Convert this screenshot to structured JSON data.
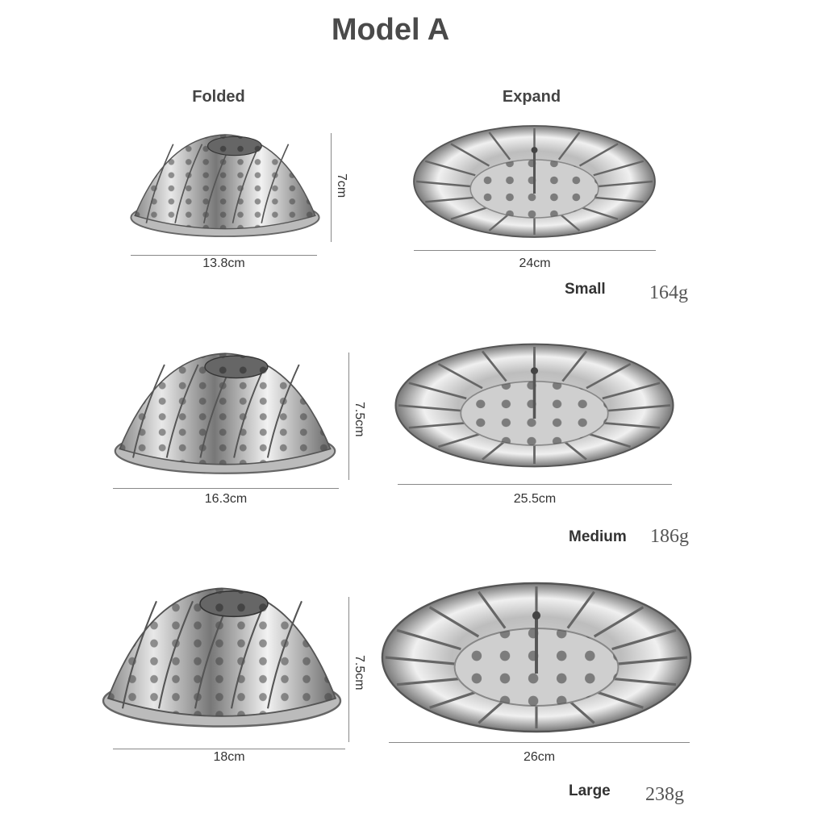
{
  "title": "Model A",
  "columns": {
    "folded": "Folded",
    "expand": "Expand"
  },
  "rows": [
    {
      "size": "Small",
      "weight": "164g",
      "folded_width": "13.8cm",
      "folded_height": "7cm",
      "expand_width": "24cm"
    },
    {
      "size": "Medium",
      "weight": "186g",
      "folded_width": "16.3cm",
      "folded_height": "7.5cm",
      "expand_width": "25.5cm"
    },
    {
      "size": "Large",
      "weight": "238g",
      "folded_width": "18cm",
      "folded_height": "7.5cm",
      "expand_width": "26cm"
    }
  ]
}
